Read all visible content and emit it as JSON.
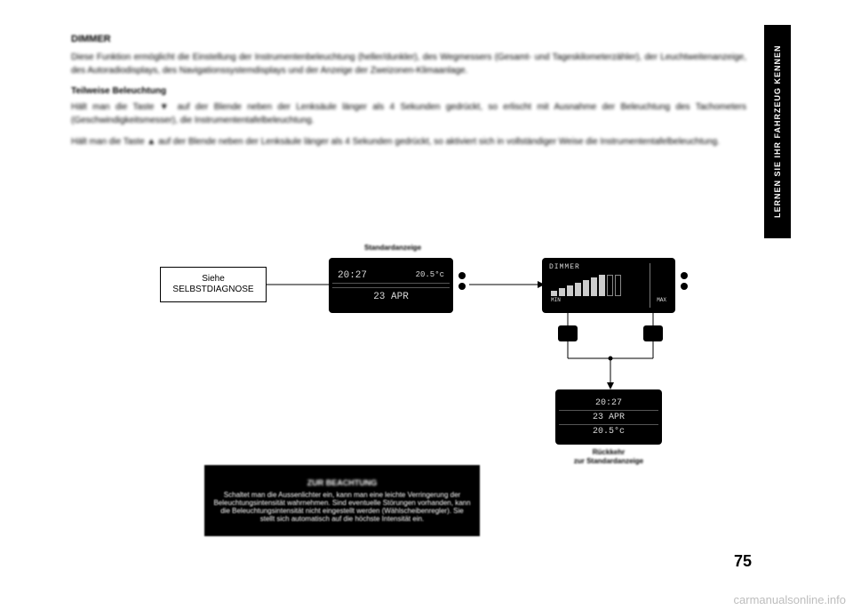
{
  "sideTab": "LERNEN SIE IHR FAHRZEUG KENNEN",
  "heading": "DIMMER",
  "para1": "Diese Funktion ermöglicht die Einstellung der Instrumentenbeleuchtung (heller/dunkler), des Wegmessers (Gesamt- und Tageskilometerzähler), der Leuchtweitenanzeige, des Autoradiodisplays, des Navigationssystemdisplays und der Anzeige der Zweizonen-Klimaanlage.",
  "subhead1": "Teilweise Beleuchtung",
  "para2": "Hält man die Taste ▼ auf der Blende neben der Lenksäule länger als 4 Sekunden gedrückt, so erlischt mit Ausnahme der Beleuchtung des Tachometers (Geschwindigkeitsmesser), die Instrumententafelbeleuchtung.",
  "para3": "Hält man die Taste ▲ auf der Blende neben der Lenksäule länger als 4 Sekunden gedrückt, so aktiviert sich in vollständiger Weise die Instrumententafelbeleuchtung.",
  "labelStandard": "Standardanzeige",
  "selbst1": "Siehe",
  "selbst2": "SELBSTDIAGNOSE",
  "lcd1_time": "20:27",
  "lcd1_temp": "20.5°c",
  "lcd1_date": "23 APR",
  "dimmer_title": "DIMMER",
  "dimmer_min": "MIN",
  "dimmer_max": "MAX",
  "return_time": "20:27",
  "return_date": "23 APR",
  "return_temp": "20.5°c",
  "returnLabel1": "Rückkehr",
  "returnLabel2": "zur Standardanzeige",
  "noteTitle": "ZUR BEACHTUNG",
  "noteBody": "Schaltet man die Aussenlichter ein, kann man eine leichte Verringerung der Beleuchtungsintensität wahrnehmen. Sind eventuelle Störungen vorhanden, kann die Beleuchtungsintensität nicht eingestellt werden (Wählscheibenregler). Sie stellt sich automatisch auf die höchste Intensität ein.",
  "pageNum": "75",
  "watermark": "carmanualsonline.info",
  "bars": [
    6,
    9,
    12,
    15,
    18,
    21,
    24,
    24,
    24
  ],
  "barsFilled": 7
}
